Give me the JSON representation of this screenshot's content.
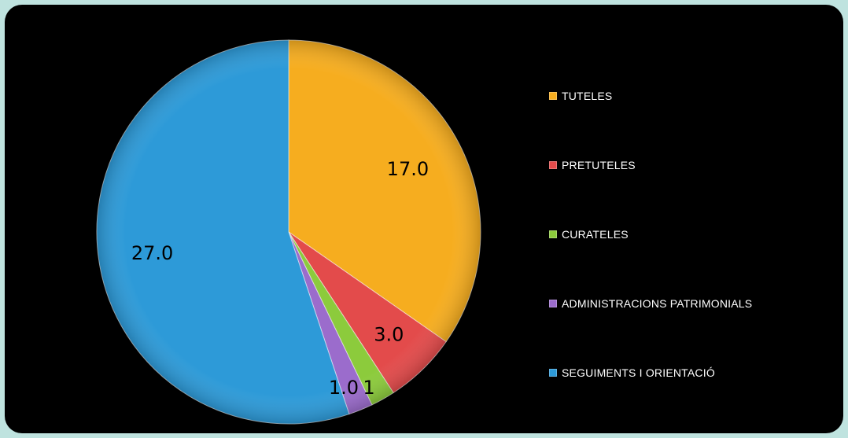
{
  "chart_data": {
    "type": "pie",
    "title": "",
    "start_angle_deg": 0,
    "direction": "clockwise",
    "legend_position": "right",
    "slices": [
      {
        "name": "TUTELES",
        "value": 17.0,
        "label": "17.0",
        "color": "#f6ad1f"
      },
      {
        "name": "PRETUTELES",
        "value": 3.0,
        "label": "3.0",
        "color": "#e34b4b"
      },
      {
        "name": "CURATELES",
        "value": 1.0,
        "label": "1",
        "color": "#8ccb3c"
      },
      {
        "name": "ADMINISTRACIONS PATRIMONIALS",
        "value": 1.0,
        "label": "1.0",
        "color": "#9b6ccc"
      },
      {
        "name": "SEGUIMENTS I ORIENTACIÓ",
        "value": 27.0,
        "label": "27.0",
        "color": "#2d9ad8"
      }
    ]
  },
  "colors": {
    "page_background": "#bfe3df",
    "panel_background": "#000000",
    "legend_text": "#ffffff"
  }
}
